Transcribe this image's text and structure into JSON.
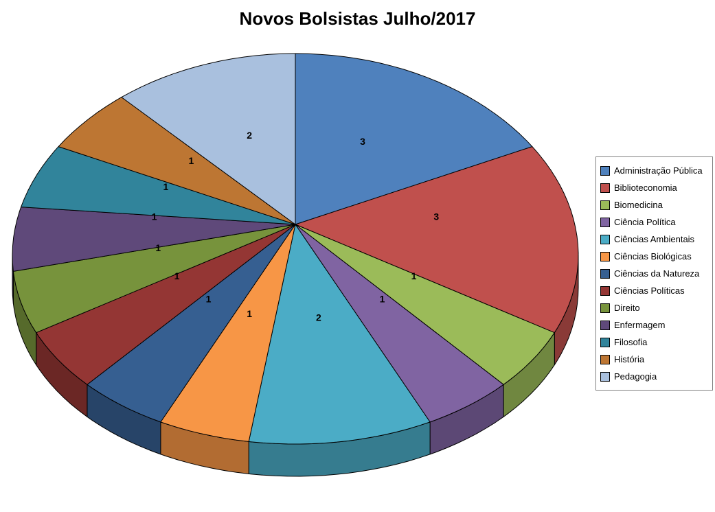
{
  "chart_data": {
    "type": "pie",
    "style": "3d-pie",
    "title": "Novos Bolsistas Julho/2017",
    "legend_position": "right",
    "direction": "clockwise",
    "start_angle_deg": 0,
    "total": 19,
    "categories": [
      "Administração Pública",
      "Biblioteconomia",
      "Biomedicina",
      "Ciência Política",
      "Ciências Ambientais",
      "Ciências Biológicas",
      "Ciências da Natureza",
      "Ciências Políticas",
      "Direito",
      "Enfermagem",
      "Filosofia",
      "História",
      "Pedagogia"
    ],
    "values": [
      3,
      3,
      1,
      1,
      2,
      1,
      1,
      1,
      1,
      1,
      1,
      1,
      2
    ],
    "data_labels": [
      "3",
      "3",
      "1",
      "1",
      "2",
      "1",
      "1",
      "1",
      "1",
      "1",
      "1",
      "1",
      "2"
    ],
    "colors": [
      "#4F81BD",
      "#C0504D",
      "#9BBB59",
      "#8064A2",
      "#4BACC6",
      "#F79646",
      "#365F91",
      "#943634",
      "#77933C",
      "#5F497A",
      "#31849B",
      "#BD7633",
      "#A9C0DE"
    ],
    "background_color": "#FFFFFF",
    "label_color": "#000000"
  }
}
